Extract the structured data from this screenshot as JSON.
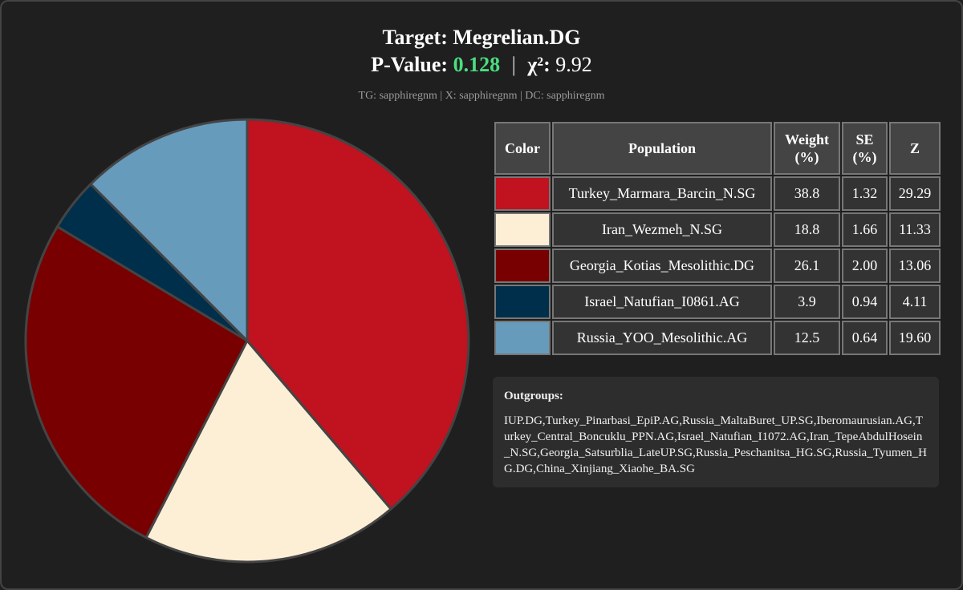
{
  "header": {
    "title": "Target: Megrelian.DG",
    "pvalue_label": "P-Value:",
    "pvalue": "0.128",
    "separator": "|",
    "chi_label": "χ²:",
    "chi_value": "9.92",
    "meta": "TG: sapphiregnm | X: sapphiregnm | DC: sapphiregnm"
  },
  "table": {
    "headers": {
      "color": "Color",
      "population": "Population",
      "weight": "Weight (%)",
      "se": "SE (%)",
      "z": "Z"
    },
    "rows": [
      {
        "color": "#c0121f",
        "population": "Turkey_Marmara_Barcin_N.SG",
        "weight": "38.8",
        "se": "1.32",
        "z": "29.29"
      },
      {
        "color": "#fdefd6",
        "population": "Iran_Wezmeh_N.SG",
        "weight": "18.8",
        "se": "1.66",
        "z": "11.33"
      },
      {
        "color": "#780000",
        "population": "Georgia_Kotias_Mesolithic.DG",
        "weight": "26.1",
        "se": "2.00",
        "z": "13.06"
      },
      {
        "color": "#002f4b",
        "population": "Israel_Natufian_I0861.AG",
        "weight": "3.9",
        "se": "0.94",
        "z": "4.11"
      },
      {
        "color": "#669bbc",
        "population": "Russia_YOO_Mesolithic.AG",
        "weight": "12.5",
        "se": "0.64",
        "z": "19.60"
      }
    ]
  },
  "outgroups": {
    "title": "Outgroups:",
    "list": "IUP.DG,Turkey_Pinarbasi_EpiP.AG,Russia_MaltaBuret_UP.SG,Iberomaurusian.AG,Turkey_Central_Boncuklu_PPN.AG,Israel_Natufian_I1072.AG,Iran_TepeAbdulHosein_N.SG,Georgia_Satsurblia_LateUP.SG,Russia_Peschanitsa_HG.SG,Russia_Tyumen_HG.DG,China_Xinjiang_Xiaohe_BA.SG"
  },
  "chart_data": {
    "type": "pie",
    "categories": [
      "Turkey_Marmara_Barcin_N.SG",
      "Iran_Wezmeh_N.SG",
      "Georgia_Kotias_Mesolithic.DG",
      "Israel_Natufian_I0861.AG",
      "Russia_YOO_Mesolithic.AG"
    ],
    "values": [
      38.8,
      18.8,
      26.1,
      3.9,
      12.5
    ],
    "colors": [
      "#c0121f",
      "#fdefd6",
      "#780000",
      "#002f4b",
      "#669bbc"
    ],
    "start": "12 o'clock",
    "direction": "clockwise",
    "slice_border_color": "#444444"
  }
}
